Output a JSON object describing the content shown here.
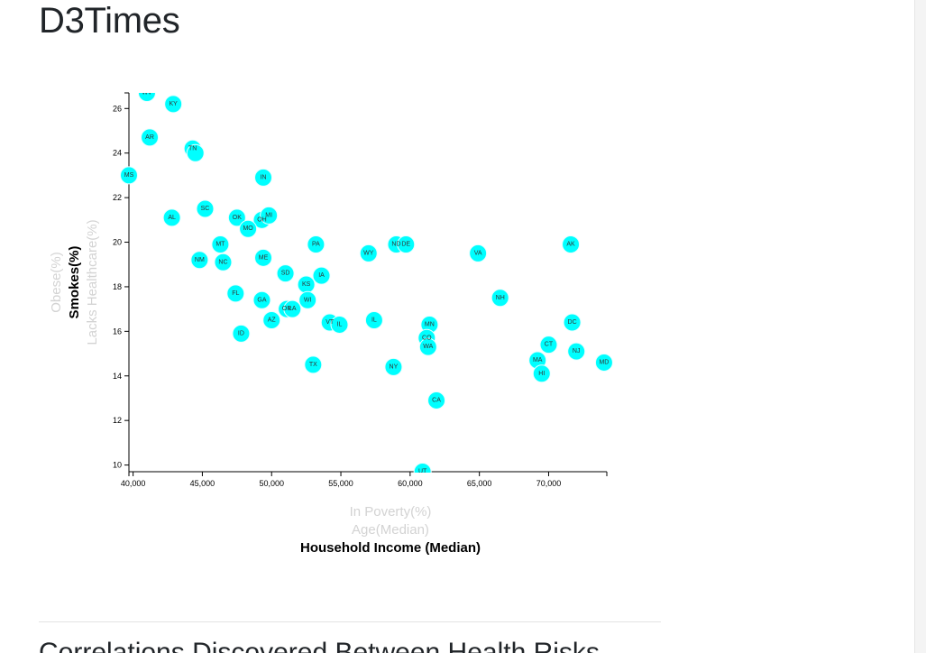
{
  "header": {
    "title": "D3Times"
  },
  "section": {
    "heading": "Correlations Discovered Between Health Risks"
  },
  "colors": {
    "point_fill": "#00ffff",
    "inactive_label": "#d3d3d3",
    "active_label": "#000000"
  },
  "chart_data": {
    "type": "scatter",
    "title": "",
    "xlabel": "Household Income (Median)",
    "ylabel": "Smokes(%)",
    "x_axis_options": [
      {
        "label": "In Poverty(%)",
        "active": false
      },
      {
        "label": "Age(Median)",
        "active": false
      },
      {
        "label": "Household Income (Median)",
        "active": true
      }
    ],
    "y_axis_options": [
      {
        "label": "Obese(%)",
        "active": false
      },
      {
        "label": "Smokes(%)",
        "active": true
      },
      {
        "label": "Lacks Healthcare(%)",
        "active": false
      }
    ],
    "xlim": [
      39700,
      74200
    ],
    "ylim": [
      9.7,
      26.7
    ],
    "x_ticks": [
      40000,
      45000,
      50000,
      55000,
      60000,
      65000,
      70000
    ],
    "x_tick_labels": [
      "40,000",
      "45,000",
      "50,000",
      "55,000",
      "60,000",
      "65,000",
      "70,000"
    ],
    "y_ticks": [
      10,
      12,
      14,
      16,
      18,
      20,
      22,
      24,
      26
    ],
    "y_tick_labels": [
      "10",
      "12",
      "14",
      "16",
      "18",
      "20",
      "22",
      "24",
      "26"
    ],
    "grid": false,
    "points": [
      {
        "label": "WV",
        "x": 41000,
        "y": 26.7
      },
      {
        "label": "KY",
        "x": 42900,
        "y": 26.2
      },
      {
        "label": "AR",
        "x": 41200,
        "y": 24.7
      },
      {
        "label": "TN",
        "x": 44300,
        "y": 24.2
      },
      {
        "label": "",
        "x": 44500,
        "y": 24.0
      },
      {
        "label": "MS",
        "x": 39700,
        "y": 23.0
      },
      {
        "label": "IN",
        "x": 49400,
        "y": 22.9
      },
      {
        "label": "SC",
        "x": 45200,
        "y": 21.5
      },
      {
        "label": "AL",
        "x": 42800,
        "y": 21.1
      },
      {
        "label": "OK",
        "x": 47500,
        "y": 21.1
      },
      {
        "label": "OH",
        "x": 49300,
        "y": 21.0
      },
      {
        "label": "MI",
        "x": 49800,
        "y": 21.2
      },
      {
        "label": "MO",
        "x": 48300,
        "y": 20.6
      },
      {
        "label": "MT",
        "x": 46300,
        "y": 19.9
      },
      {
        "label": "PA",
        "x": 53200,
        "y": 19.9
      },
      {
        "label": "ND",
        "x": 59000,
        "y": 19.9
      },
      {
        "label": "DE",
        "x": 59700,
        "y": 19.9
      },
      {
        "label": "AK",
        "x": 71600,
        "y": 19.9
      },
      {
        "label": "WY",
        "x": 57000,
        "y": 19.5
      },
      {
        "label": "VA",
        "x": 64900,
        "y": 19.5
      },
      {
        "label": "NM",
        "x": 44800,
        "y": 19.2
      },
      {
        "label": "NC",
        "x": 46500,
        "y": 19.1
      },
      {
        "label": "ME",
        "x": 49400,
        "y": 19.3
      },
      {
        "label": "SD",
        "x": 51000,
        "y": 18.6
      },
      {
        "label": "IA",
        "x": 53600,
        "y": 18.5
      },
      {
        "label": "KS",
        "x": 52500,
        "y": 18.1
      },
      {
        "label": "FL",
        "x": 47400,
        "y": 17.7
      },
      {
        "label": "GA",
        "x": 49300,
        "y": 17.4
      },
      {
        "label": "WI",
        "x": 52600,
        "y": 17.4
      },
      {
        "label": "OR",
        "x": 51100,
        "y": 17.0
      },
      {
        "label": "LA",
        "x": 51500,
        "y": 17.0
      },
      {
        "label": "NH",
        "x": 66500,
        "y": 17.5
      },
      {
        "label": "AZ",
        "x": 50000,
        "y": 16.5
      },
      {
        "label": "VT",
        "x": 54200,
        "y": 16.4
      },
      {
        "label": "IL",
        "x": 54900,
        "y": 16.3
      },
      {
        "label": "IL",
        "x": 57400,
        "y": 16.5
      },
      {
        "label": "MN",
        "x": 61400,
        "y": 16.3
      },
      {
        "label": "DC",
        "x": 71700,
        "y": 16.4
      },
      {
        "label": "ID",
        "x": 47800,
        "y": 15.9
      },
      {
        "label": "CO",
        "x": 61200,
        "y": 15.7
      },
      {
        "label": "WA",
        "x": 61300,
        "y": 15.3
      },
      {
        "label": "CT",
        "x": 70000,
        "y": 15.4
      },
      {
        "label": "NJ",
        "x": 72000,
        "y": 15.1
      },
      {
        "label": "MA",
        "x": 69200,
        "y": 14.7
      },
      {
        "label": "MD",
        "x": 74000,
        "y": 14.6
      },
      {
        "label": "TX",
        "x": 53000,
        "y": 14.5
      },
      {
        "label": "NY",
        "x": 58800,
        "y": 14.4
      },
      {
        "label": "HI",
        "x": 69500,
        "y": 14.1
      },
      {
        "label": "CA",
        "x": 61900,
        "y": 12.9
      },
      {
        "label": "UT",
        "x": 60900,
        "y": 9.7
      }
    ]
  }
}
